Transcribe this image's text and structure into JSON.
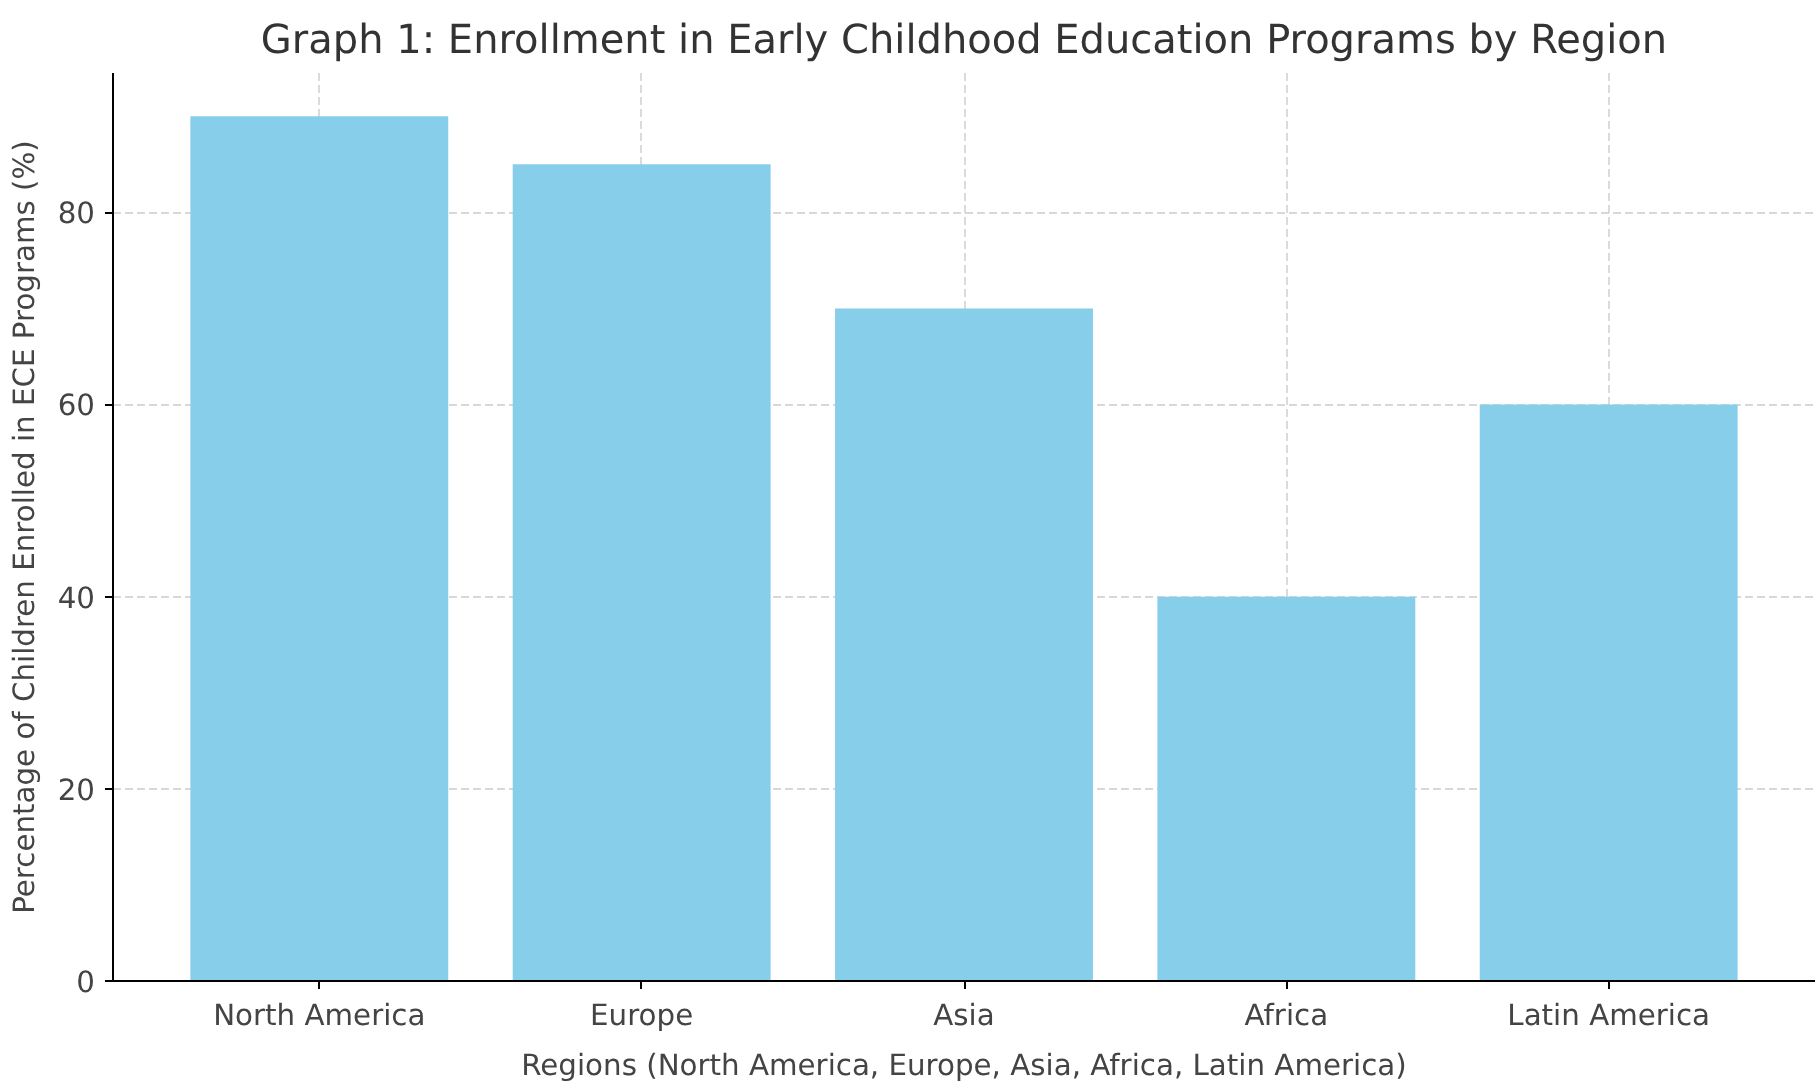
{
  "chart_data": {
    "type": "bar",
    "title": "Graph 1: Enrollment in Early Childhood Education Programs by Region",
    "xlabel": "Regions (North America, Europe, Asia, Africa, Latin America)",
    "ylabel": "Percentage of Children Enrolled in ECE Programs (%)",
    "categories": [
      "North America",
      "Europe",
      "Asia",
      "Africa",
      "Latin America"
    ],
    "values": [
      90,
      85,
      70,
      40,
      60
    ],
    "color": "#87ceeb",
    "ylim": [
      0,
      94.5
    ],
    "yticks": [
      0,
      20,
      40,
      60,
      80
    ],
    "grid": true
  }
}
